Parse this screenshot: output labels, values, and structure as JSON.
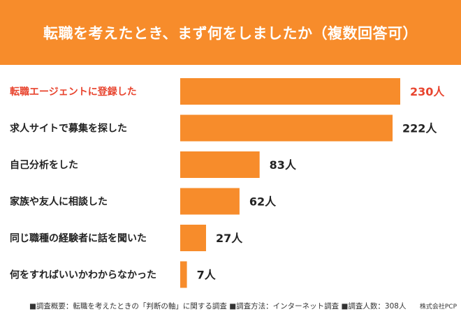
{
  "header": {
    "title": "転職を考えたとき、まず何をしましたか（複数回答可）"
  },
  "chart_data": {
    "type": "bar",
    "orientation": "horizontal",
    "categories": [
      "転職エージェントに登録した",
      "求人サイトで募集を探した",
      "自己分析をした",
      "家族や友人に相談した",
      "同じ職種の経験者に話を聞いた",
      "何をすればいいかわからなかった"
    ],
    "values": [
      230,
      222,
      83,
      62,
      27,
      7
    ],
    "value_labels": [
      "230人",
      "222人",
      "83人",
      "62人",
      "27人",
      "7人"
    ],
    "highlight_index": 0,
    "xlim": [
      0,
      230
    ],
    "grid": false,
    "bar_color": "#f78c2b",
    "label_color": "#222222",
    "highlight_color": "#e8442e"
  },
  "footer": {
    "note": "■調査概要：転職を考えたときの「判断の軸」に関する調査 ■調査方法：インターネット調査 ■調査人数：308人",
    "company": "株式会社PCP"
  }
}
